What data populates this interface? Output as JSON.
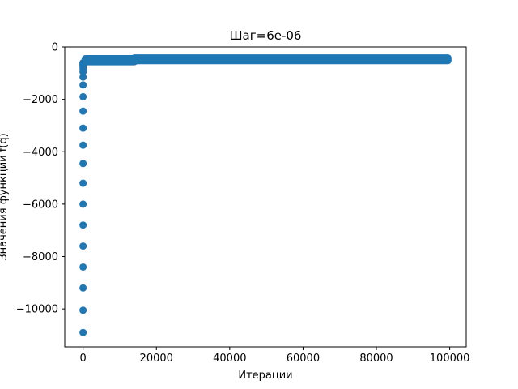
{
  "chart_data": {
    "type": "scatter",
    "title": "Шаг=6e-06",
    "xlabel": "Итерации",
    "ylabel": "Значения функции f(q)",
    "xlim": [
      -5000,
      104500
    ],
    "ylim": [
      -11450,
      0
    ],
    "xticks": [
      0,
      20000,
      40000,
      60000,
      80000,
      100000
    ],
    "xtick_labels": [
      "0",
      "20000",
      "40000",
      "60000",
      "80000",
      "100000"
    ],
    "yticks": [
      0,
      -2000,
      -4000,
      -6000,
      -8000,
      -10000
    ],
    "ytick_labels": [
      "0",
      "−2000",
      "−4000",
      "−6000",
      "−8000",
      "−10000"
    ],
    "grid": false,
    "color": "#1f77b4",
    "series": [
      {
        "x": [
          0,
          0,
          0,
          0,
          0,
          0,
          0,
          0,
          0,
          0,
          0,
          0,
          0,
          0,
          0,
          0,
          0,
          0,
          0,
          0,
          0,
          0,
          0,
          50,
          100,
          150,
          200,
          300,
          400,
          500,
          600,
          800,
          1000,
          1500
        ],
        "y": [
          -10900,
          -10050,
          -9200,
          -8400,
          -7600,
          -6800,
          -6000,
          -5200,
          -4450,
          -3750,
          -3100,
          -2450,
          -1900,
          -1450,
          -1150,
          -950,
          -850,
          -780,
          -720,
          -680,
          -650,
          -620,
          -600,
          -700,
          -650,
          -620,
          -600,
          -580,
          -560,
          -550,
          -540,
          -530,
          -520,
          -510
        ]
      }
    ],
    "band_segments": [
      {
        "x": [
          600,
          14000
        ],
        "y": [
          -560,
          -450
        ]
      },
      {
        "x": [
          14000,
          99500
        ],
        "y": [
          -520,
          -420
        ]
      }
    ]
  }
}
